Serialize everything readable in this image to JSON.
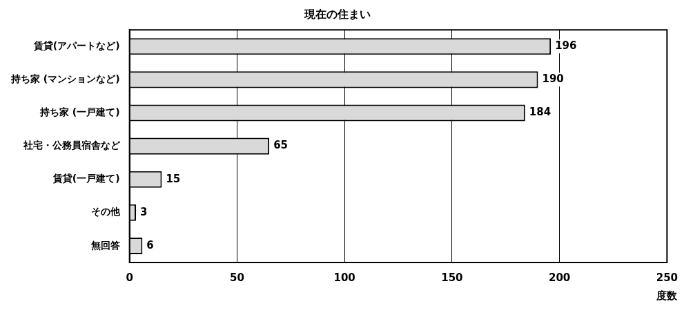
{
  "chart_data": {
    "type": "bar",
    "orientation": "horizontal",
    "title": "現在の住まい",
    "xlabel": "度数",
    "categories": [
      "賃貸(アパートなど)",
      "持ち家 (マンションなど)",
      "持ち家 (一戸建て)",
      "社宅・公務員宿舎など",
      "賃貸(一戸建て)",
      "その他",
      "無回答"
    ],
    "values": [
      196,
      190,
      184,
      65,
      15,
      3,
      6
    ],
    "color": "#d9d9d9",
    "xlim": [
      0,
      250
    ],
    "xticks": [
      0,
      50,
      100,
      150,
      200,
      250
    ],
    "grid": "x",
    "data_labels": true,
    "legend": false
  }
}
